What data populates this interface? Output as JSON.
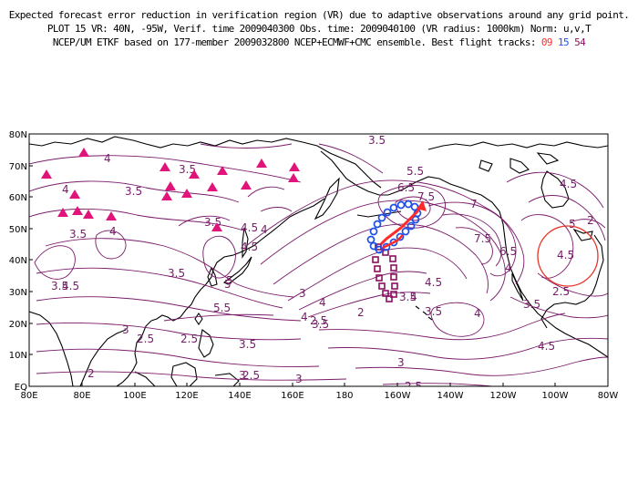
{
  "header": {
    "line1": "Expected forecast error reduction in verification region (VR) due to adaptive observations around any grid point.",
    "line2": "PLOT 15 VR: 40N, -95W, Verif. time 2009040300 Obs. time: 2009040100 (VR radius: 1000km) Norm: u,v,T",
    "line3_prefix": "NCEP/UM ETKF based on 177-member 2009032800 NCEP+ECMWF+CMC ensemble. Best flight tracks:",
    "track_ids": [
      "09",
      "15",
      "54"
    ]
  },
  "map": {
    "lat_labels": [
      "80N",
      "70N",
      "60N",
      "50N",
      "40N",
      "30N",
      "20N",
      "10N",
      "EQ"
    ],
    "lon_labels": [
      "80E",
      "80E",
      "100E",
      "120E",
      "140E",
      "160E",
      "180",
      "160W",
      "140W",
      "120W",
      "100W",
      "80W"
    ],
    "verification_region": {
      "lat": 40,
      "lon": -95,
      "radius_km": 1000,
      "label": "4.5"
    },
    "colors": {
      "contour": "#7a1a6a",
      "track_09": "#ff2a2a",
      "track_15": "#1f4fe8",
      "track_54": "#8b0f60",
      "dropsonde_triangle": "#e0147a",
      "vr_circle": "#e8352a"
    },
    "contour_labels": [
      "3.5",
      "4",
      "3.5",
      "3.5",
      "3.5",
      "4",
      "4.5",
      "5",
      "5.5",
      "6.5",
      "7.5",
      "7",
      "7.5",
      "6.5",
      "4",
      "4.5",
      "5",
      "5.5",
      "4",
      "4.5",
      "3.5",
      "3",
      "2.5",
      "2",
      "2.5",
      "3",
      "3.5",
      "4",
      "4.5",
      "3.5",
      "3",
      "2.5",
      "2",
      "2.5",
      "3",
      "3.5",
      "4",
      "4",
      "3.5",
      "4.5",
      "3.5",
      "2.5",
      "2",
      "5",
      "3.5",
      "4",
      "3.5",
      "2.5",
      "3",
      "4.5",
      "4"
    ]
  }
}
